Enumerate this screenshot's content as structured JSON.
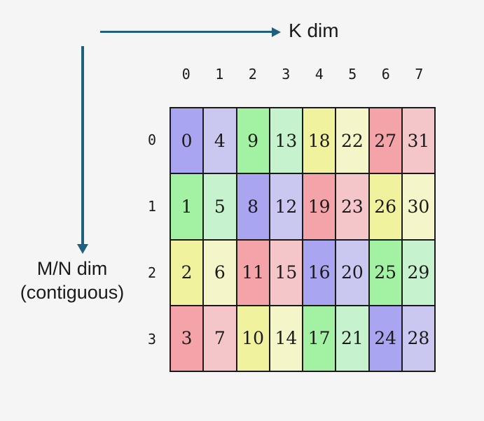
{
  "axes": {
    "k_label": "K dim",
    "mn_label_line1": "M/N dim",
    "mn_label_line2": "(contiguous)"
  },
  "colors": {
    "background": "#f5f5f5",
    "arrow": "#20607f",
    "grid_border": "#1a1a1a",
    "text": "#1a1a1a",
    "palette": {
      "purple": "#a9a5f0",
      "purple_light": "#cac7f1",
      "green": "#a3f2a3",
      "green_light": "#c6f3cd",
      "yellow": "#f1f29e",
      "yellow_light": "#f4f5c8",
      "red": "#f4a4a8",
      "red_light": "#f5c6c9"
    }
  },
  "matrix": {
    "col_headers": [
      "0",
      "1",
      "2",
      "3",
      "4",
      "5",
      "6",
      "7"
    ],
    "row_headers": [
      "0",
      "1",
      "2",
      "3"
    ],
    "cells": [
      [
        {
          "v": "0",
          "c": "purple"
        },
        {
          "v": "4",
          "c": "purple_light"
        },
        {
          "v": "9",
          "c": "green"
        },
        {
          "v": "13",
          "c": "green_light"
        },
        {
          "v": "18",
          "c": "yellow"
        },
        {
          "v": "22",
          "c": "yellow_light"
        },
        {
          "v": "27",
          "c": "red"
        },
        {
          "v": "31",
          "c": "red_light"
        }
      ],
      [
        {
          "v": "1",
          "c": "green"
        },
        {
          "v": "5",
          "c": "green_light"
        },
        {
          "v": "8",
          "c": "purple"
        },
        {
          "v": "12",
          "c": "purple_light"
        },
        {
          "v": "19",
          "c": "red"
        },
        {
          "v": "23",
          "c": "red_light"
        },
        {
          "v": "26",
          "c": "yellow"
        },
        {
          "v": "30",
          "c": "yellow_light"
        }
      ],
      [
        {
          "v": "2",
          "c": "yellow"
        },
        {
          "v": "6",
          "c": "yellow_light"
        },
        {
          "v": "11",
          "c": "red"
        },
        {
          "v": "15",
          "c": "red_light"
        },
        {
          "v": "16",
          "c": "purple"
        },
        {
          "v": "20",
          "c": "purple_light"
        },
        {
          "v": "25",
          "c": "green"
        },
        {
          "v": "29",
          "c": "green_light"
        }
      ],
      [
        {
          "v": "3",
          "c": "red"
        },
        {
          "v": "7",
          "c": "red_light"
        },
        {
          "v": "10",
          "c": "yellow"
        },
        {
          "v": "14",
          "c": "yellow_light"
        },
        {
          "v": "17",
          "c": "green"
        },
        {
          "v": "21",
          "c": "green_light"
        },
        {
          "v": "24",
          "c": "purple"
        },
        {
          "v": "28",
          "c": "purple_light"
        }
      ]
    ]
  }
}
